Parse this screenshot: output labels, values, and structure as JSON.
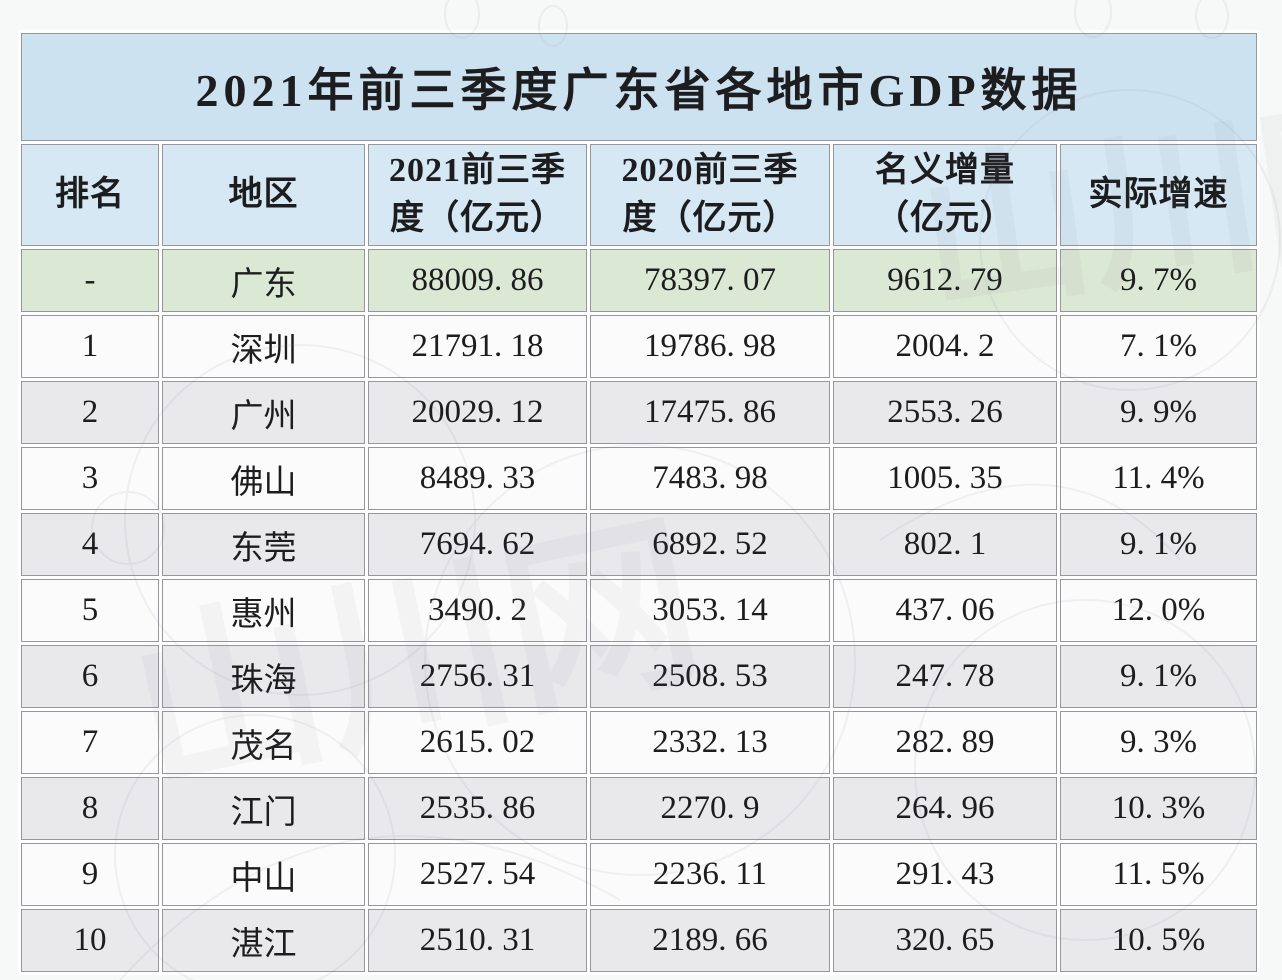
{
  "colors": {
    "page_bg": "#f7f8f8",
    "title_bg": "#cde2f0",
    "header_bg": "#d5e8f4",
    "province_row_bg": "#dbe8d3",
    "row_light_bg": "#fbfbfb",
    "row_dark_bg": "#e9e9ec",
    "grid_gap": "#ffffff",
    "border": "#96979c",
    "text": "#1d1d1f"
  },
  "decoration": {
    "watermark_text": "山川网"
  },
  "display": {
    "headers": [
      "排名",
      "地区",
      "2021前三季\n度（亿元）",
      "2020前三季\n度（亿元）",
      "名义增量\n（亿元）",
      "实际增速"
    ]
  },
  "chart_data": {
    "type": "table",
    "title": "2021年前三季度广东省各地市GDP数据",
    "columns": [
      "排名",
      "地区",
      "2021前三季度（亿元）",
      "2020前三季度（亿元）",
      "名义增量（亿元）",
      "实际增速"
    ],
    "rows": [
      [
        "-",
        "广东",
        "88009.86",
        "78397.07",
        "9612.79",
        "9.7%"
      ],
      [
        "1",
        "深圳",
        "21791.18",
        "19786.98",
        "2004.2",
        "7.1%"
      ],
      [
        "2",
        "广州",
        "20029.12",
        "17475.86",
        "2553.26",
        "9.9%"
      ],
      [
        "3",
        "佛山",
        "8489.33",
        "7483.98",
        "1005.35",
        "11.4%"
      ],
      [
        "4",
        "东莞",
        "7694.62",
        "6892.52",
        "802.1",
        "9.1%"
      ],
      [
        "5",
        "惠州",
        "3490.2",
        "3053.14",
        "437.06",
        "12.0%"
      ],
      [
        "6",
        "珠海",
        "2756.31",
        "2508.53",
        "247.78",
        "9.1%"
      ],
      [
        "7",
        "茂名",
        "2615.02",
        "2332.13",
        "282.89",
        "9.3%"
      ],
      [
        "8",
        "江门",
        "2535.86",
        "2270.9",
        "264.96",
        "10.3%"
      ],
      [
        "9",
        "中山",
        "2527.54",
        "2236.11",
        "291.43",
        "11.5%"
      ],
      [
        "10",
        "湛江",
        "2510.31",
        "2189.66",
        "320.65",
        "10.5%"
      ]
    ]
  }
}
